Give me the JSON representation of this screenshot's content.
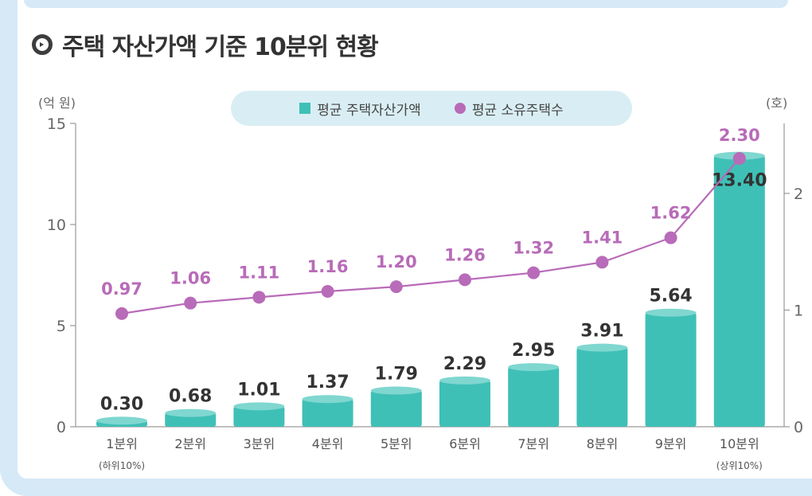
{
  "title": "주택 자산가액 기준 10분위 현황",
  "chart_data": {
    "type": "bar",
    "categories": [
      "1분위",
      "2분위",
      "3분위",
      "4분위",
      "5분위",
      "6분위",
      "7분위",
      "8분위",
      "9분위",
      "10분위"
    ],
    "category_sublabels": [
      "(하위10%)",
      "",
      "",
      "",
      "",
      "",
      "",
      "",
      "",
      "(상위10%)"
    ],
    "series": [
      {
        "name": "평균 주택자산가액",
        "type": "bar",
        "axis": "left",
        "color": "#3fc0b6",
        "values": [
          0.3,
          0.68,
          1.01,
          1.37,
          1.79,
          2.29,
          2.95,
          3.91,
          5.64,
          13.4
        ],
        "labels": [
          "0.30",
          "0.68",
          "1.01",
          "1.37",
          "1.79",
          "2.29",
          "2.95",
          "3.91",
          "5.64",
          "13.40"
        ]
      },
      {
        "name": "평균 소유주택수",
        "type": "line",
        "axis": "right",
        "color": "#b86bb8",
        "values": [
          0.97,
          1.06,
          1.11,
          1.16,
          1.2,
          1.26,
          1.32,
          1.41,
          1.62,
          2.3
        ],
        "labels": [
          "0.97",
          "1.06",
          "1.11",
          "1.16",
          "1.20",
          "1.26",
          "1.32",
          "1.41",
          "1.62",
          "2.30"
        ]
      }
    ],
    "y_left": {
      "unit": "(억 원)",
      "range": [
        0,
        15
      ],
      "ticks": [
        "0",
        "5",
        "10",
        "15"
      ]
    },
    "y_right": {
      "unit": "(호)",
      "range": [
        0,
        2.6
      ],
      "ticks": [
        "0",
        "1",
        "2"
      ]
    },
    "legend_position": "top-center"
  },
  "colors": {
    "bar": "#3fc0b6",
    "bar_top": "#7fd7d0",
    "line": "#b86bb8",
    "text": "#333333",
    "axis": "#9a9a9a",
    "frame": "#d6e9f6",
    "legend_bg": "#d9eef4"
  }
}
